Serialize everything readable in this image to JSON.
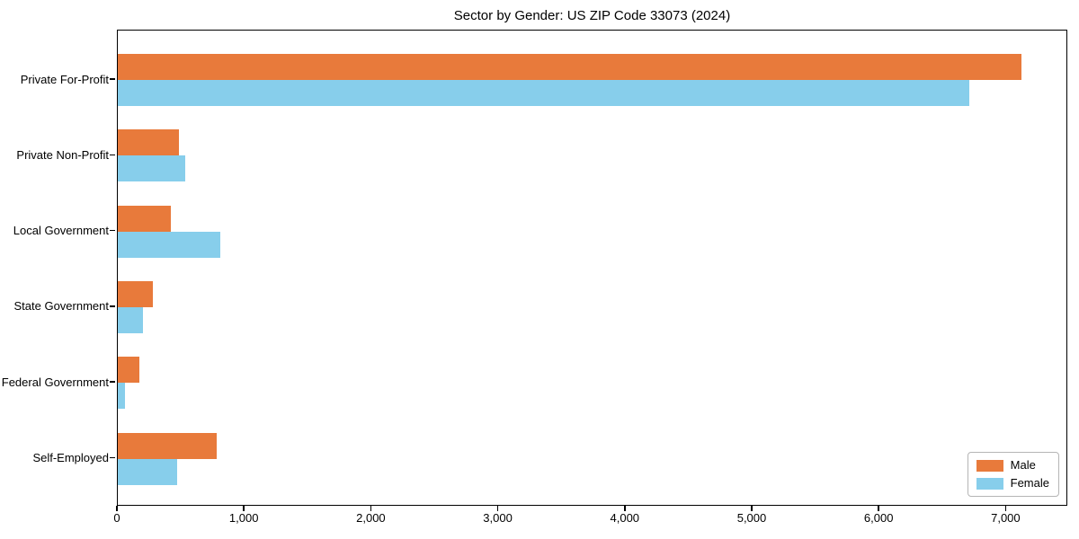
{
  "chart_data": {
    "type": "bar",
    "orientation": "horizontal",
    "title": "Sector by Gender: US ZIP Code 33073 (2024)",
    "xlabel": "",
    "ylabel": "",
    "categories": [
      "Private For-Profit",
      "Private Non-Profit",
      "Local Government",
      "State Government",
      "Federal Government",
      "Self-Employed"
    ],
    "series": [
      {
        "name": "Male",
        "color": "#e87a3b",
        "values": [
          7120,
          480,
          420,
          275,
          170,
          780
        ]
      },
      {
        "name": "Female",
        "color": "#87ceeb",
        "values": [
          6710,
          530,
          810,
          200,
          55,
          470
        ]
      }
    ],
    "xlim": [
      0,
      7486
    ],
    "xticks": [
      0,
      1000,
      2000,
      3000,
      4000,
      5000,
      6000,
      7000
    ],
    "xtick_labels": [
      "0",
      "1,000",
      "2,000",
      "3,000",
      "4,000",
      "5,000",
      "6,000",
      "7,000"
    ],
    "legend": {
      "position": "lower right",
      "entries": [
        "Male",
        "Female"
      ]
    },
    "grid": false,
    "background_color": "#ffffff",
    "text_color": "#000000"
  }
}
